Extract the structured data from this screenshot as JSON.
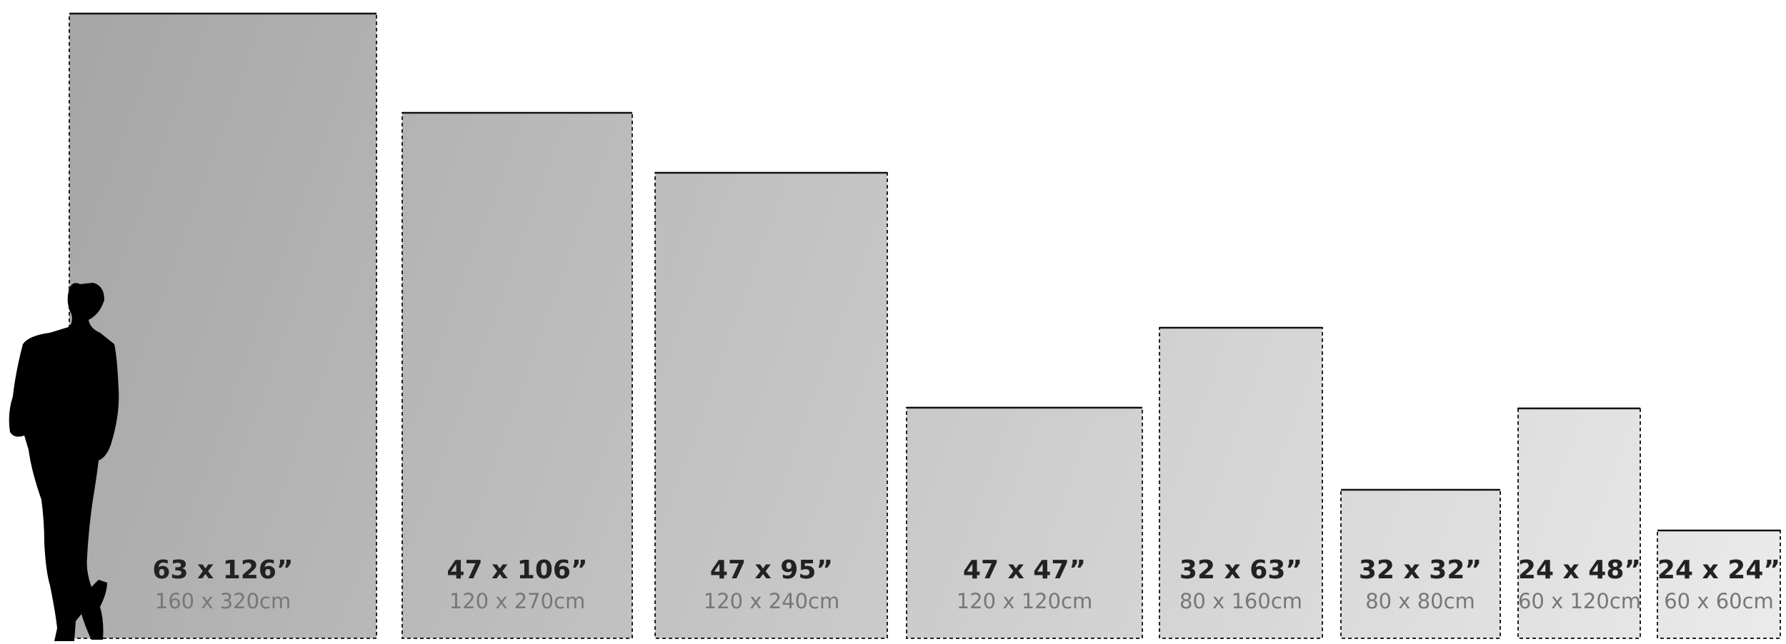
{
  "sizes": [
    {
      "inches": "63 x 126”",
      "cm": "160 x 320cm"
    },
    {
      "inches": "47 x 106”",
      "cm": "120 x 270cm"
    },
    {
      "inches": "47 x 95”",
      "cm": "120 x 240cm"
    },
    {
      "inches": "47 x 47”",
      "cm": "120 x 120cm"
    },
    {
      "inches": "32 x 63”",
      "cm": "80 x 160cm"
    },
    {
      "inches": "32 x 32”",
      "cm": "80 x 80cm"
    },
    {
      "inches": "24 x 48”",
      "cm": "60 x 120cm"
    },
    {
      "inches": "24 x 24”",
      "cm": "60 x 60cm"
    }
  ]
}
